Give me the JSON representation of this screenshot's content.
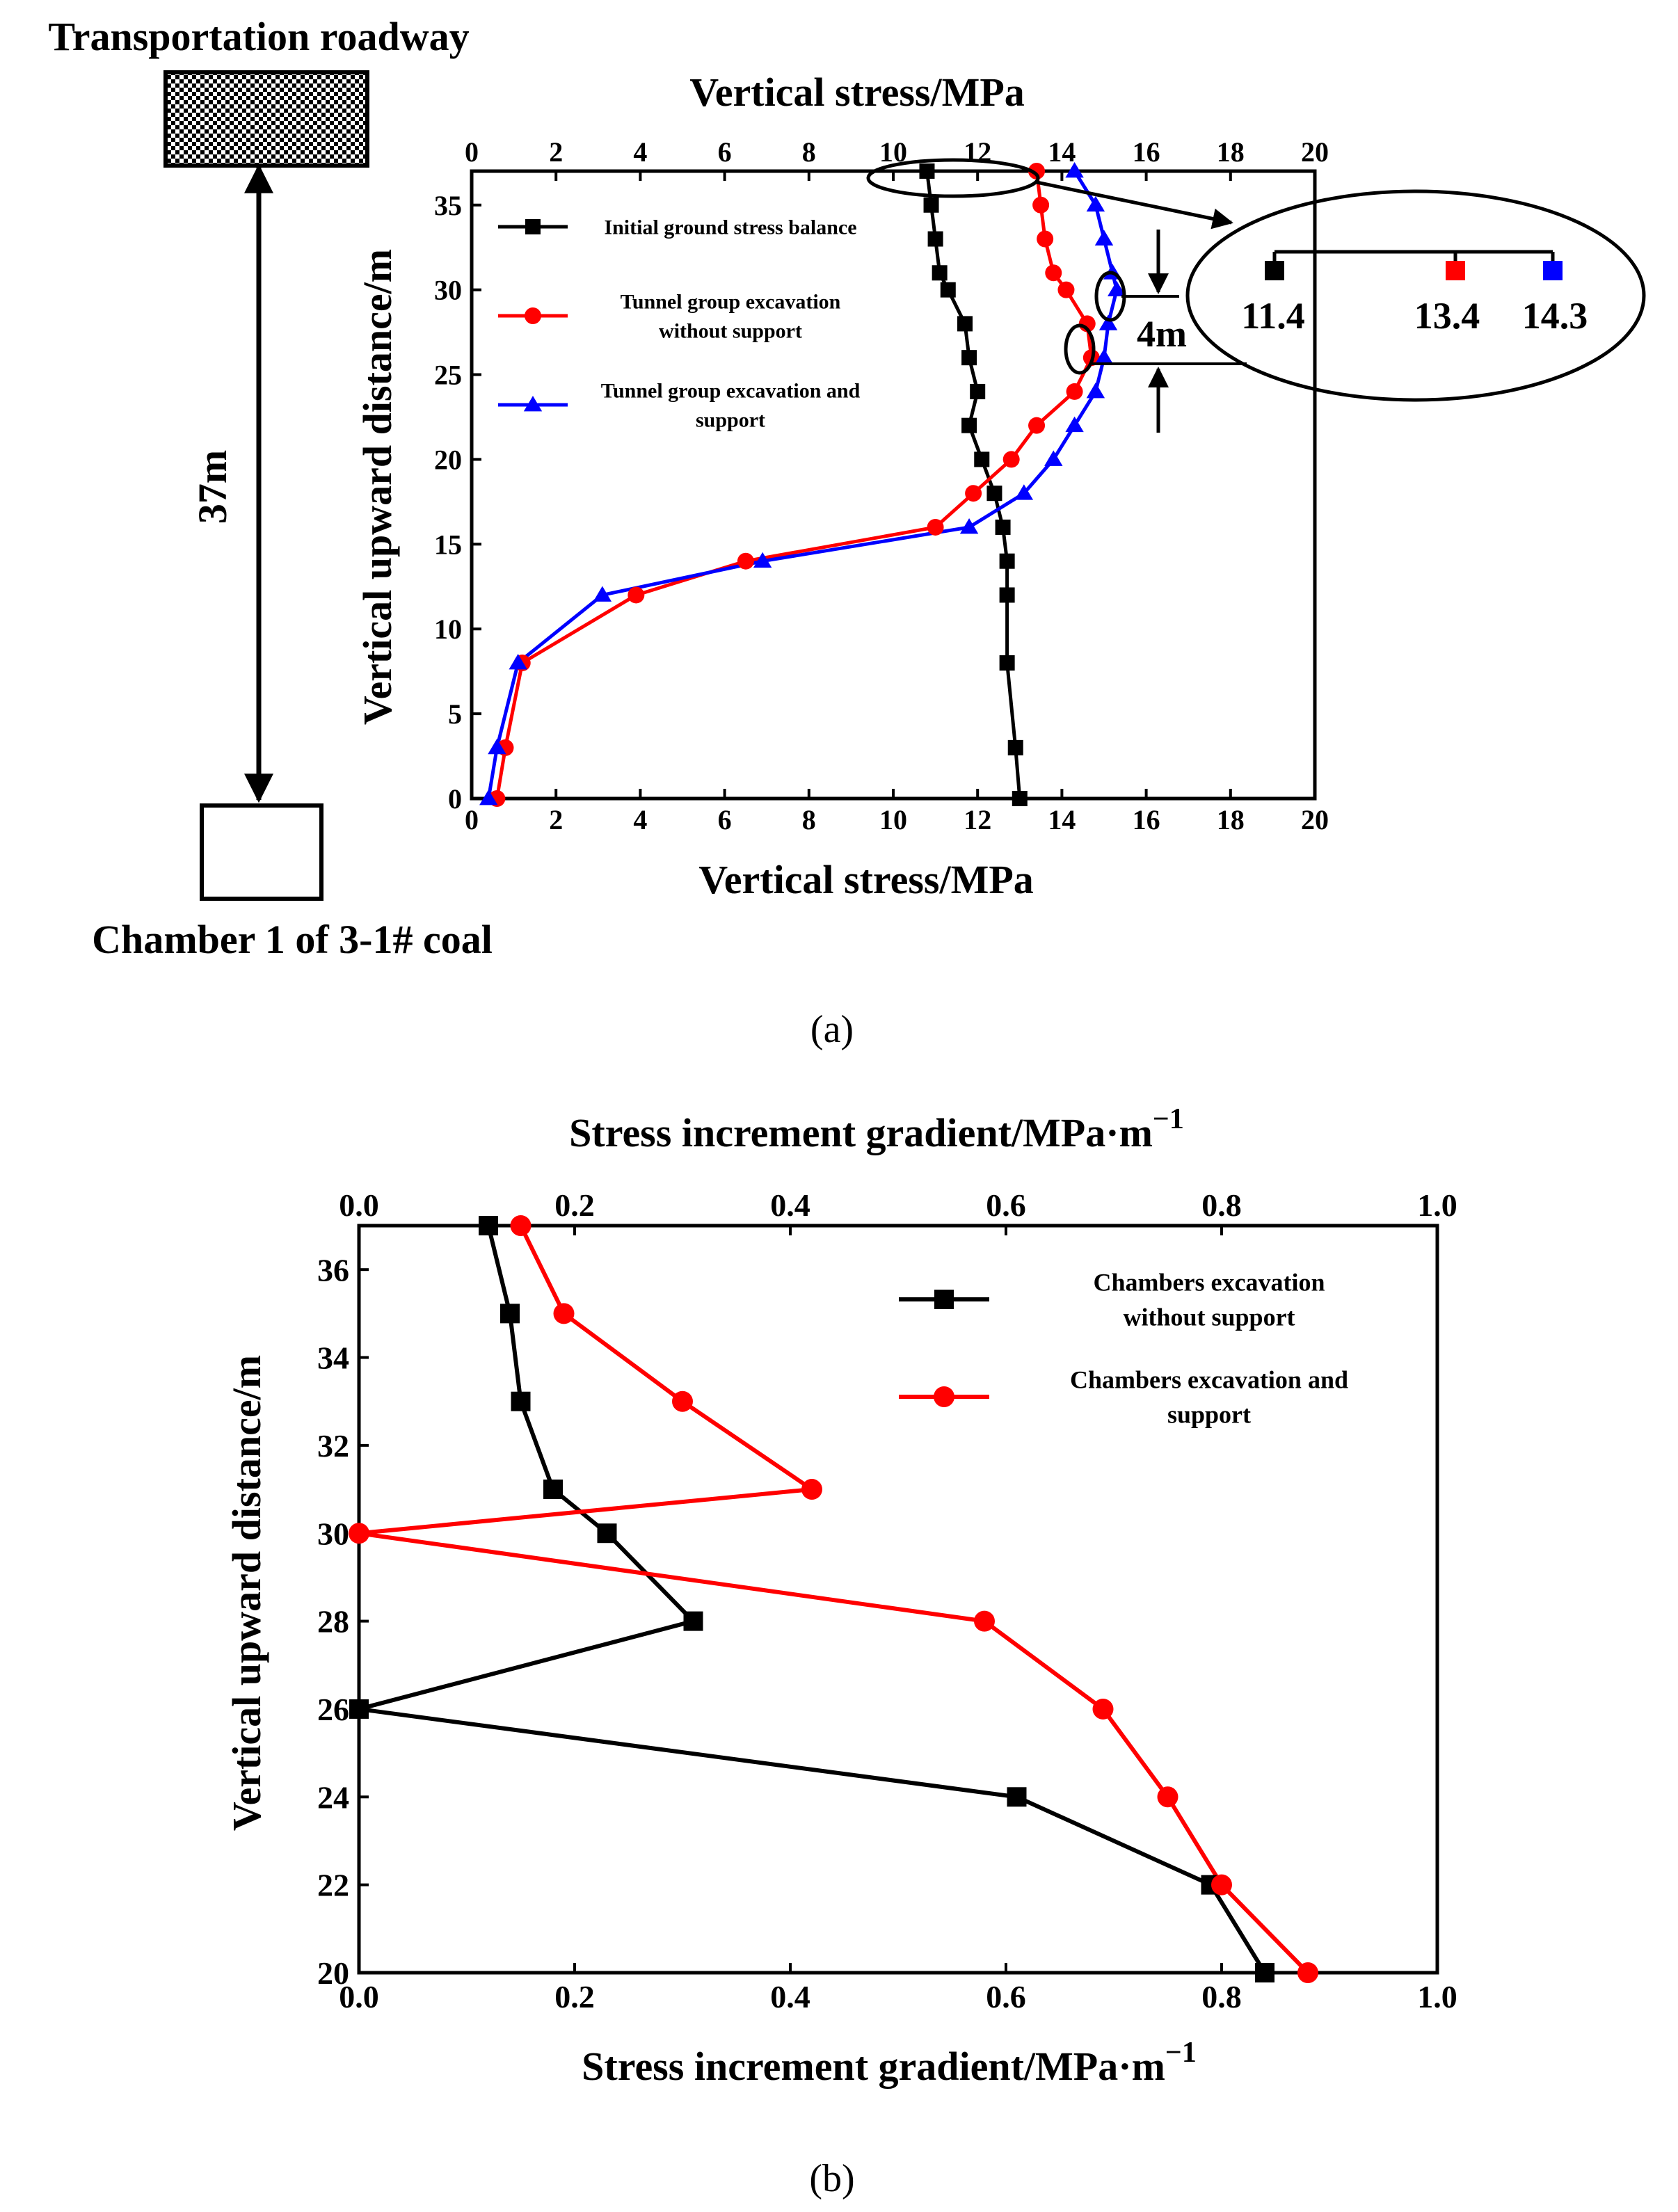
{
  "panel_a": {
    "caption": "(a)",
    "schematic": {
      "top_label": "Transportation roadway",
      "bottom_label": "Chamber 1 of 3-1# coal",
      "distance_label": "37m"
    },
    "callout": {
      "values": [
        "11.4",
        "13.4",
        "14.3"
      ],
      "gap_label": "4m"
    }
  },
  "panel_b": {
    "caption": "(b)"
  },
  "chart_data": [
    {
      "type": "line",
      "title": "",
      "xlabel": "Vertical stress/MPa",
      "x2label": "Vertical stress/MPa",
      "ylabel": "Vertical upward distance/m",
      "xlim": [
        0,
        20
      ],
      "ylim": [
        0,
        37
      ],
      "xticks": [
        0,
        2,
        4,
        6,
        8,
        10,
        12,
        14,
        16,
        18,
        20
      ],
      "yticks": [
        0,
        5,
        10,
        15,
        20,
        25,
        30,
        35
      ],
      "legend_position": "top-left",
      "series": [
        {
          "name": "Initial ground stress balance",
          "color": "#000000",
          "marker": "square",
          "legend_lines": [
            "Initial ground stress balance"
          ],
          "points": [
            [
              13.0,
              0
            ],
            [
              12.9,
              3
            ],
            [
              12.7,
              8
            ],
            [
              12.7,
              12
            ],
            [
              12.7,
              14
            ],
            [
              12.6,
              16
            ],
            [
              12.4,
              18
            ],
            [
              12.1,
              20
            ],
            [
              11.8,
              22
            ],
            [
              12.0,
              24
            ],
            [
              11.8,
              26
            ],
            [
              11.7,
              28
            ],
            [
              11.3,
              30
            ],
            [
              11.1,
              31
            ],
            [
              11.0,
              33
            ],
            [
              10.9,
              35
            ],
            [
              10.8,
              37
            ]
          ]
        },
        {
          "name": "Tunnel group excavation without support",
          "color": "#ff0000",
          "marker": "circle",
          "legend_lines": [
            "Tunnel group excavation",
            "without support"
          ],
          "points": [
            [
              0.6,
              0
            ],
            [
              0.8,
              3
            ],
            [
              1.2,
              8
            ],
            [
              3.9,
              12
            ],
            [
              6.5,
              14
            ],
            [
              11.0,
              16
            ],
            [
              11.9,
              18
            ],
            [
              12.8,
              20
            ],
            [
              13.4,
              22
            ],
            [
              14.3,
              24
            ],
            [
              14.7,
              26
            ],
            [
              14.6,
              28
            ],
            [
              14.1,
              30
            ],
            [
              13.8,
              31
            ],
            [
              13.6,
              33
            ],
            [
              13.5,
              35
            ],
            [
              13.4,
              37
            ]
          ]
        },
        {
          "name": "Tunnel group excavation and support",
          "color": "#0000ff",
          "marker": "triangle",
          "legend_lines": [
            "Tunnel group excavation and",
            "support"
          ],
          "points": [
            [
              0.4,
              0
            ],
            [
              0.6,
              3
            ],
            [
              1.1,
              8
            ],
            [
              3.1,
              12
            ],
            [
              6.9,
              14
            ],
            [
              11.8,
              16
            ],
            [
              13.1,
              18
            ],
            [
              13.8,
              20
            ],
            [
              14.3,
              22
            ],
            [
              14.8,
              24
            ],
            [
              15.0,
              26
            ],
            [
              15.1,
              28
            ],
            [
              15.3,
              30
            ],
            [
              15.2,
              31
            ],
            [
              15.0,
              33
            ],
            [
              14.8,
              35
            ],
            [
              14.3,
              37
            ]
          ]
        }
      ]
    },
    {
      "type": "line",
      "title": "",
      "xlabel": "Stress increment gradient/MPa·m",
      "x2label": "Stress increment gradient/MPa·m",
      "xlabel_superscript": "−1",
      "ylabel": "Vertical upward distance/m",
      "xlim": [
        0,
        1
      ],
      "ylim": [
        20,
        37
      ],
      "xticks": [
        "0.0",
        "0.2",
        "0.4",
        "0.6",
        "0.8",
        "1.0"
      ],
      "yticks": [
        20,
        22,
        24,
        26,
        28,
        30,
        32,
        34,
        36
      ],
      "legend_position": "top-right",
      "series": [
        {
          "name": "Chambers excavation without support",
          "color": "#000000",
          "marker": "square",
          "legend_lines": [
            "Chambers excavation",
            "without support"
          ],
          "points": [
            [
              0.84,
              20
            ],
            [
              0.79,
              22
            ],
            [
              0.61,
              24
            ],
            [
              0.0,
              26
            ],
            [
              0.31,
              28
            ],
            [
              0.23,
              30
            ],
            [
              0.18,
              31
            ],
            [
              0.15,
              33
            ],
            [
              0.14,
              35
            ],
            [
              0.12,
              37
            ]
          ]
        },
        {
          "name": "Chambers excavation and support",
          "color": "#ff0000",
          "marker": "circle",
          "legend_lines": [
            "Chambers excavation and",
            "support"
          ],
          "points": [
            [
              0.88,
              20
            ],
            [
              0.8,
              22
            ],
            [
              0.75,
              24
            ],
            [
              0.69,
              26
            ],
            [
              0.58,
              28
            ],
            [
              0.0,
              30
            ],
            [
              0.42,
              31
            ],
            [
              0.3,
              33
            ],
            [
              0.19,
              35
            ],
            [
              0.15,
              37
            ]
          ]
        }
      ]
    }
  ]
}
